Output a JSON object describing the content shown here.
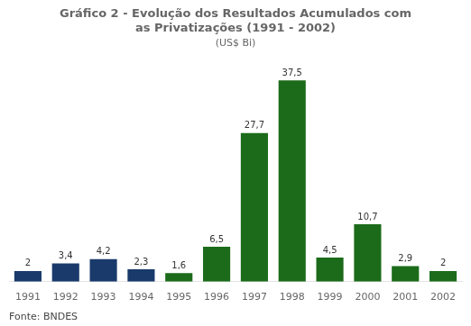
{
  "chart_data": {
    "type": "bar",
    "title": [
      "Gráfico 2 - Evolução dos Resultados Acumulados com",
      "as Privatizações (1991 - 2002)"
    ],
    "subtitle": "(US$ Bi)",
    "source": "Fonte: BNDES",
    "categories": [
      "1991",
      "1992",
      "1993",
      "1994",
      "1995",
      "1996",
      "1997",
      "1998",
      "1999",
      "2000",
      "2001",
      "2002"
    ],
    "values": [
      2.0,
      3.4,
      4.2,
      2.3,
      1.6,
      6.5,
      27.7,
      37.5,
      4.5,
      10.7,
      2.9,
      2.0
    ],
    "value_labels": [
      "2",
      "3,4",
      "4,2",
      "2,3",
      "1,6",
      "6,5",
      "27,7",
      "37,5",
      "4,5",
      "10,7",
      "2,9",
      "2"
    ],
    "colors": [
      "#1a3a6b",
      "#1a3a6b",
      "#1a3a6b",
      "#1a3a6b",
      "#1b6b1a",
      "#1b6b1a",
      "#1b6b1a",
      "#1b6b1a",
      "#1b6b1a",
      "#1b6b1a",
      "#1b6b1a",
      "#1b6b1a"
    ],
    "ylim": [
      0,
      42
    ],
    "data_labels": true,
    "tick_labels": "x",
    "grid": false
  }
}
